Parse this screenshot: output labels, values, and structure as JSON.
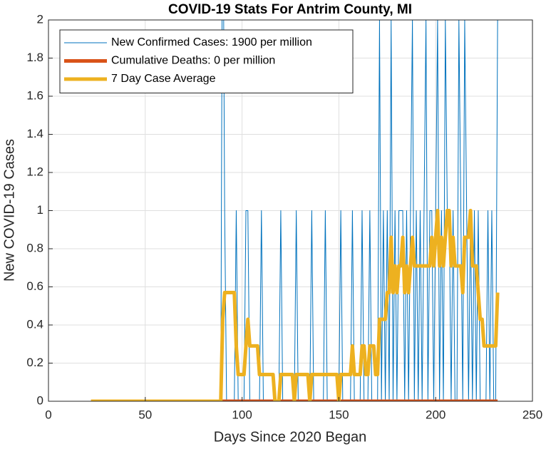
{
  "chart_data": {
    "type": "line",
    "title": "COVID-19 Stats For Antrim County, MI",
    "xlabel": "Days Since 2020 Began",
    "ylabel": "New COVID-19 Cases",
    "xlim": [
      0,
      250
    ],
    "xticks": [
      0,
      50,
      100,
      150,
      200,
      250
    ],
    "ylim": [
      0,
      2
    ],
    "yticks": [
      0,
      0.2,
      0.4,
      0.6,
      0.8,
      1,
      1.2,
      1.4,
      1.6,
      1.8,
      2
    ],
    "grid": true,
    "legend": "top-left",
    "x": [
      22,
      23,
      24,
      25,
      26,
      27,
      28,
      29,
      30,
      31,
      32,
      33,
      34,
      35,
      36,
      37,
      38,
      39,
      40,
      41,
      42,
      43,
      44,
      45,
      46,
      47,
      48,
      49,
      50,
      51,
      52,
      53,
      54,
      55,
      56,
      57,
      58,
      59,
      60,
      61,
      62,
      63,
      64,
      65,
      66,
      67,
      68,
      69,
      70,
      71,
      72,
      73,
      74,
      75,
      76,
      77,
      78,
      79,
      80,
      81,
      82,
      83,
      84,
      85,
      86,
      87,
      88,
      89,
      90,
      91,
      92,
      93,
      94,
      95,
      96,
      97,
      98,
      99,
      100,
      101,
      102,
      103,
      104,
      105,
      106,
      107,
      108,
      109,
      110,
      111,
      112,
      113,
      114,
      115,
      116,
      117,
      118,
      119,
      120,
      121,
      122,
      123,
      124,
      125,
      126,
      127,
      128,
      129,
      130,
      131,
      132,
      133,
      134,
      135,
      136,
      137,
      138,
      139,
      140,
      141,
      142,
      143,
      144,
      145,
      146,
      147,
      148,
      149,
      150,
      151,
      152,
      153,
      154,
      155,
      156,
      157,
      158,
      159,
      160,
      161,
      162,
      163,
      164,
      165,
      166,
      167,
      168,
      169,
      170,
      171,
      172,
      173,
      174,
      175,
      176,
      177,
      178,
      179,
      180,
      181,
      182,
      183,
      184,
      185,
      186,
      187,
      188,
      189,
      190,
      191,
      192,
      193,
      194,
      195,
      196,
      197,
      198,
      199,
      200,
      201,
      202,
      203,
      204,
      205,
      206,
      207,
      208,
      209,
      210,
      211,
      212,
      213,
      214,
      215,
      216,
      217,
      218,
      219,
      220,
      221,
      222,
      223,
      224,
      225,
      226,
      227,
      228,
      229,
      230,
      231,
      232
    ],
    "series": [
      {
        "name": "New Confirmed Cases: 1900 per million",
        "color": "#0072BD",
        "width": 1,
        "values": [
          0,
          0,
          0,
          0,
          0,
          0,
          0,
          0,
          0,
          0,
          0,
          0,
          0,
          0,
          0,
          0,
          0,
          0,
          0,
          0,
          0,
          0,
          0,
          0,
          0,
          0,
          0,
          0,
          0,
          0,
          0,
          0,
          0,
          0,
          0,
          0,
          0,
          0,
          0,
          0,
          0,
          0,
          0,
          0,
          0,
          0,
          0,
          0,
          0,
          0,
          0,
          0,
          0,
          0,
          0,
          0,
          0,
          0,
          0,
          0,
          0,
          0,
          0,
          0,
          0,
          0,
          0,
          0,
          3,
          1,
          0,
          0,
          0,
          0,
          0,
          1,
          0,
          0,
          0,
          0,
          1,
          1,
          0,
          0,
          0,
          0,
          0,
          0,
          1,
          0,
          0,
          0,
          0,
          0,
          0,
          0,
          0,
          0,
          1,
          0,
          0,
          0,
          0,
          0,
          0,
          0,
          1,
          0,
          0,
          0,
          0,
          0,
          0,
          0,
          1,
          0,
          0,
          0,
          0,
          0,
          0,
          1,
          0,
          0,
          0,
          0,
          0,
          0,
          0,
          1,
          0,
          0,
          0,
          0,
          0,
          1,
          0,
          0,
          0,
          0,
          1,
          0,
          0,
          0,
          1,
          0,
          0,
          0,
          0,
          2,
          0,
          1,
          0,
          1,
          0,
          2,
          0,
          1,
          0,
          1,
          1,
          1,
          0,
          1,
          0,
          1,
          2,
          0,
          1,
          0,
          1,
          0,
          1,
          2,
          0,
          1,
          1,
          0,
          1,
          2,
          0,
          1,
          0,
          2,
          1,
          1,
          0,
          1,
          0,
          0,
          2,
          1,
          0,
          2,
          1,
          0,
          1,
          0,
          1,
          0,
          1,
          0,
          0,
          0,
          0,
          1,
          0,
          1,
          0,
          0,
          2
        ]
      },
      {
        "name": "Cumulative Deaths: 0 per million",
        "color": "#D95319",
        "width": 5,
        "values": [
          0,
          0,
          0,
          0,
          0,
          0,
          0,
          0,
          0,
          0,
          0,
          0,
          0,
          0,
          0,
          0,
          0,
          0,
          0,
          0,
          0,
          0,
          0,
          0,
          0,
          0,
          0,
          0,
          0,
          0,
          0,
          0,
          0,
          0,
          0,
          0,
          0,
          0,
          0,
          0,
          0,
          0,
          0,
          0,
          0,
          0,
          0,
          0,
          0,
          0,
          0,
          0,
          0,
          0,
          0,
          0,
          0,
          0,
          0,
          0,
          0,
          0,
          0,
          0,
          0,
          0,
          0,
          0,
          0,
          0,
          0,
          0,
          0,
          0,
          0,
          0,
          0,
          0,
          0,
          0,
          0,
          0,
          0,
          0,
          0,
          0,
          0,
          0,
          0,
          0,
          0,
          0,
          0,
          0,
          0,
          0,
          0,
          0,
          0,
          0,
          0,
          0,
          0,
          0,
          0,
          0,
          0,
          0,
          0,
          0,
          0,
          0,
          0,
          0,
          0,
          0,
          0,
          0,
          0,
          0,
          0,
          0,
          0,
          0,
          0,
          0,
          0,
          0,
          0,
          0,
          0,
          0,
          0,
          0,
          0,
          0,
          0,
          0,
          0,
          0,
          0,
          0,
          0,
          0,
          0,
          0,
          0,
          0,
          0,
          0,
          0,
          0,
          0,
          0,
          0,
          0,
          0,
          0,
          0,
          0,
          0,
          0,
          0,
          0,
          0,
          0,
          0,
          0,
          0,
          0,
          0,
          0,
          0,
          0,
          0,
          0,
          0,
          0,
          0,
          0,
          0,
          0,
          0,
          0,
          0,
          0,
          0,
          0,
          0,
          0,
          0,
          0,
          0,
          0,
          0,
          0,
          0,
          0,
          0,
          0,
          0,
          0,
          0,
          0,
          0,
          0,
          0,
          0,
          0,
          0,
          0
        ]
      },
      {
        "name": "7 Day Case Average",
        "color": "#EDB120",
        "width": 5,
        "values": [
          0,
          0,
          0,
          0,
          0,
          0,
          0,
          0,
          0,
          0,
          0,
          0,
          0,
          0,
          0,
          0,
          0,
          0,
          0,
          0,
          0,
          0,
          0,
          0,
          0,
          0,
          0,
          0,
          0,
          0,
          0,
          0,
          0,
          0,
          0,
          0,
          0,
          0,
          0,
          0,
          0,
          0,
          0,
          0,
          0,
          0,
          0,
          0,
          0,
          0,
          0,
          0,
          0,
          0,
          0,
          0,
          0,
          0,
          0,
          0,
          0,
          0,
          0,
          0,
          0,
          0,
          0,
          0,
          0.43,
          0.57,
          0.57,
          0.57,
          0.57,
          0.57,
          0.57,
          0.29,
          0.14,
          0.14,
          0.14,
          0.14,
          0.29,
          0.43,
          0.29,
          0.29,
          0.29,
          0.29,
          0.29,
          0.14,
          0.14,
          0.14,
          0.14,
          0.14,
          0.14,
          0.14,
          0.14,
          0,
          0,
          0,
          0.14,
          0.14,
          0.14,
          0.14,
          0.14,
          0.14,
          0.14,
          0,
          0.14,
          0.14,
          0.14,
          0.14,
          0.14,
          0.14,
          0.14,
          0,
          0.14,
          0.14,
          0.14,
          0.14,
          0.14,
          0.14,
          0.14,
          0.14,
          0.14,
          0.14,
          0.14,
          0.14,
          0.14,
          0.14,
          0,
          0.14,
          0.14,
          0.14,
          0.14,
          0.14,
          0.14,
          0.29,
          0.14,
          0.14,
          0.14,
          0.14,
          0.29,
          0.29,
          0.14,
          0.14,
          0.29,
          0.29,
          0.29,
          0.14,
          0.14,
          0.43,
          0.43,
          0.43,
          0.43,
          0.57,
          0.57,
          0.86,
          0.57,
          0.71,
          0.57,
          0.71,
          0.71,
          0.86,
          0.57,
          0.71,
          0.57,
          0.71,
          0.86,
          0.71,
          0.71,
          0.71,
          0.71,
          0.71,
          0.71,
          0.71,
          0.71,
          0.71,
          0.86,
          0.71,
          0.86,
          1,
          0.71,
          0.86,
          0.71,
          0.86,
          1,
          1,
          0.71,
          0.86,
          0.71,
          0.71,
          0.71,
          0.71,
          0.57,
          0.86,
          0.86,
          0.86,
          1,
          0.71,
          0.71,
          0.71,
          0.57,
          0.43,
          0.43,
          0.29,
          0.29,
          0.29,
          0.29,
          0.29,
          0.29,
          0.29,
          0.57
        ]
      }
    ]
  }
}
